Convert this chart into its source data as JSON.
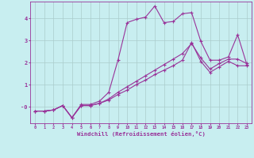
{
  "xlabel": "Windchill (Refroidissement éolien,°C)",
  "x": [
    0,
    1,
    2,
    3,
    4,
    5,
    6,
    7,
    8,
    9,
    10,
    11,
    12,
    13,
    14,
    15,
    16,
    17,
    18,
    19,
    20,
    21,
    22,
    23
  ],
  "line1": [
    -0.2,
    -0.2,
    -0.15,
    0.05,
    -0.5,
    0.05,
    0.05,
    0.15,
    0.3,
    0.55,
    0.75,
    1.0,
    1.2,
    1.45,
    1.65,
    1.85,
    2.1,
    2.9,
    2.05,
    1.55,
    1.8,
    2.05,
    1.85,
    1.85
  ],
  "line2": [
    -0.2,
    -0.2,
    -0.15,
    0.05,
    -0.5,
    0.05,
    0.05,
    0.15,
    0.35,
    0.65,
    0.9,
    1.15,
    1.4,
    1.65,
    1.9,
    2.15,
    2.4,
    2.85,
    2.2,
    1.7,
    1.95,
    2.15,
    2.15,
    1.95
  ],
  "line3": [
    -0.2,
    -0.2,
    -0.15,
    0.05,
    -0.5,
    0.1,
    0.1,
    0.25,
    0.65,
    2.1,
    3.8,
    3.95,
    4.05,
    4.55,
    3.8,
    3.85,
    4.2,
    4.25,
    2.95,
    2.1,
    2.1,
    2.25,
    3.25,
    1.9
  ],
  "line_color": "#993399",
  "bg_color": "#c8eef0",
  "grid_color": "#aacccc",
  "ylim": [
    -0.75,
    4.75
  ],
  "xlim": [
    -0.5,
    23.5
  ],
  "yticks": [
    4,
    3,
    2,
    1,
    0
  ],
  "ytick_labels": [
    "4",
    "3",
    "2",
    "1",
    "-0"
  ]
}
